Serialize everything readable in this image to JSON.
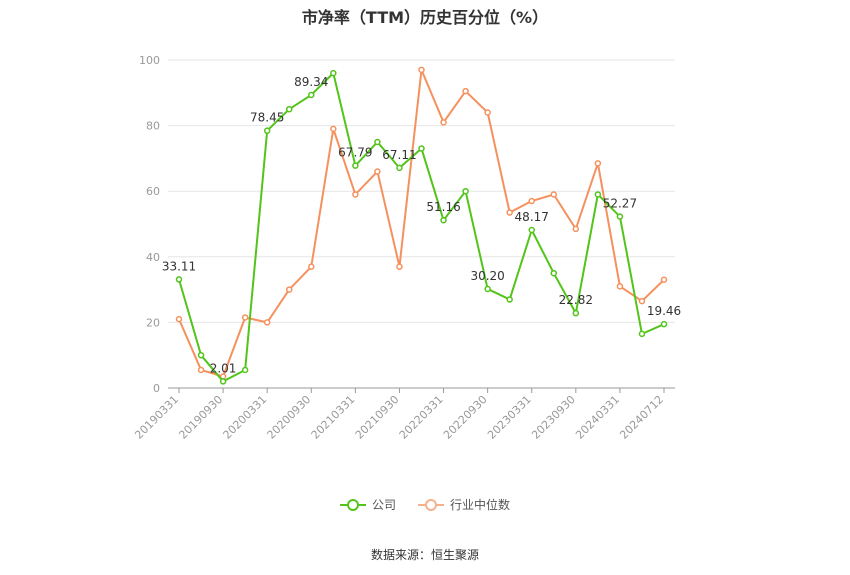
{
  "chart_data": {
    "type": "line",
    "title": "市净率（TTM）历史百分位（%）",
    "ylim": [
      0,
      100
    ],
    "yticks": [
      0,
      20,
      40,
      60,
      80,
      100
    ],
    "x_tick_labels": [
      "20190331",
      "20190930",
      "20200331",
      "20200930",
      "20210331",
      "20210930",
      "20220331",
      "20220930",
      "20230331",
      "20230930",
      "20240331",
      "20240712"
    ],
    "x": [
      "20190331",
      "20190630",
      "20190930",
      "20191231",
      "20200331",
      "20200630",
      "20200930",
      "20201231",
      "20210331",
      "20210630",
      "20210930",
      "20211231",
      "20220331",
      "20220630",
      "20220930",
      "20221231",
      "20230331",
      "20230630",
      "20230930",
      "20231231",
      "20240331",
      "20240630",
      "20240712"
    ],
    "series": [
      {
        "name": "公司",
        "color": "#52c41a",
        "values": [
          33.11,
          10,
          2.01,
          5.5,
          78.45,
          85,
          89.34,
          96,
          67.79,
          75,
          67.11,
          73,
          51.16,
          60,
          30.2,
          27,
          48.17,
          35,
          22.82,
          59,
          52.27,
          16.5,
          19.46
        ],
        "labels": {
          "0": "33.11",
          "2": "2.01",
          "4": "78.45",
          "6": "89.34",
          "8": "67.79",
          "10": "67.11",
          "12": "51.16",
          "14": "30.20",
          "16": "48.17",
          "18": "22.82",
          "20": "52.27",
          "22": "19.46"
        }
      },
      {
        "name": "行业中位数",
        "color": "#f5915e",
        "values": [
          21,
          5.5,
          3.5,
          21.5,
          20,
          30,
          37,
          79,
          59,
          66,
          37,
          97,
          81,
          90.5,
          84,
          53.5,
          57,
          59,
          48.5,
          68.5,
          31,
          26.5,
          33
        ]
      }
    ],
    "grid": true,
    "legend_position": "bottom"
  },
  "source_label": "数据来源：恒生聚源"
}
